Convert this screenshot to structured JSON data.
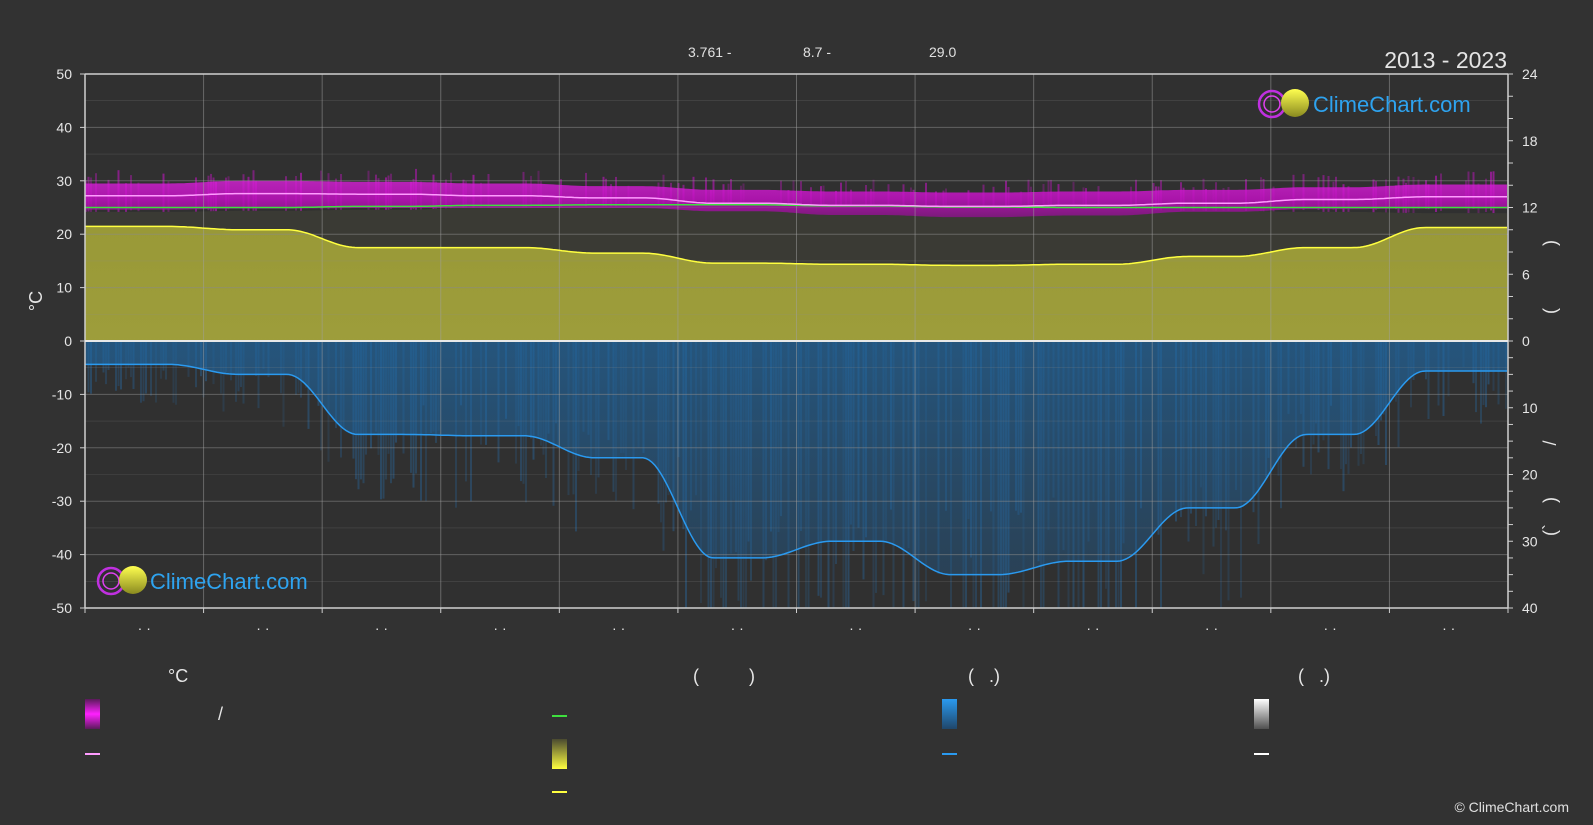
{
  "title": "2013 - 2023",
  "header_values": [
    "3.761 -",
    "8.7 -",
    "29.0"
  ],
  "logo_text": "ClimeChart.com",
  "copyright": "© ClimeChart.com",
  "left_axis_unit": "°C",
  "right_axis_marks": [
    ")",
    "(",
    "/",
    ")",
    "(`"
  ],
  "legend": {
    "col1_header": "°C",
    "col1_slash": "/",
    "col2_header": "(          )",
    "col3_header": "(   .)",
    "col4_header": "(   .)"
  },
  "colors": {
    "background": "#323232",
    "temp_band": "#e020e0",
    "temp_mean_line": "#ff9cff",
    "sea_line": "#3ee03e",
    "sun_band": "#c8c83a",
    "sun_line": "#ffff40",
    "precip_band": "#1e78c8",
    "precip_line": "#2a9af0",
    "snow": "#ffffff"
  },
  "chart_data": {
    "type": "area",
    "title": "2013 - 2023",
    "ylabel": "°C",
    "ylim": [
      -50,
      50
    ],
    "y_ticks": [
      50,
      40,
      30,
      20,
      10,
      0,
      -10,
      -20,
      -30,
      -40,
      -50
    ],
    "right_upper_ticks": [
      24,
      18,
      12,
      6,
      0
    ],
    "right_upper_range": [
      0,
      24
    ],
    "right_lower_ticks": [
      0,
      10,
      20,
      30,
      40
    ],
    "right_lower_range": [
      0,
      40
    ],
    "x_tick_labels": [
      "· ·",
      "· ·",
      "· ·",
      "· ·",
      "· ·",
      "· ·",
      "· ·",
      "· ·",
      "· ·",
      "· ·",
      "· ·",
      "· ·"
    ],
    "x_months": [
      0,
      1,
      2,
      3,
      4,
      5,
      6,
      7,
      8,
      9,
      10,
      11
    ],
    "grid": true,
    "series": [
      {
        "key": "temp_max",
        "values": [
          29.5,
          30,
          29.8,
          29.5,
          29,
          28.3,
          28,
          27.8,
          28,
          28.3,
          28.8,
          29.3
        ]
      },
      {
        "key": "temp_min",
        "values": [
          24.6,
          24.8,
          24.9,
          24.9,
          24.9,
          24.3,
          23.6,
          23.2,
          23.5,
          24.2,
          24.7,
          24.8
        ]
      },
      {
        "key": "temp_mean",
        "values": [
          27.2,
          27.6,
          27.5,
          27.2,
          26.8,
          25.8,
          25.4,
          25.2,
          25.4,
          25.8,
          26.5,
          27
        ]
      },
      {
        "key": "sea_temp",
        "values": [
          25,
          25,
          25.2,
          25.4,
          25.5,
          25.5,
          25.3,
          25.1,
          25,
          25,
          25,
          25
        ]
      },
      {
        "key": "sunshine_hours",
        "values": [
          10.3,
          10,
          8.4,
          8.4,
          7.9,
          7,
          6.9,
          6.8,
          6.9,
          7.6,
          8.4,
          10.2
        ]
      },
      {
        "key": "daylight_hours",
        "values": [
          11.6,
          11.7,
          11.8,
          12,
          12.1,
          12.2,
          12.1,
          12,
          11.9,
          11.7,
          11.6,
          11.5
        ]
      },
      {
        "key": "precipitation_mm",
        "values": [
          3.5,
          5,
          14,
          14.2,
          17.5,
          32.5,
          30,
          35,
          33,
          25,
          14,
          4.5
        ]
      }
    ]
  }
}
